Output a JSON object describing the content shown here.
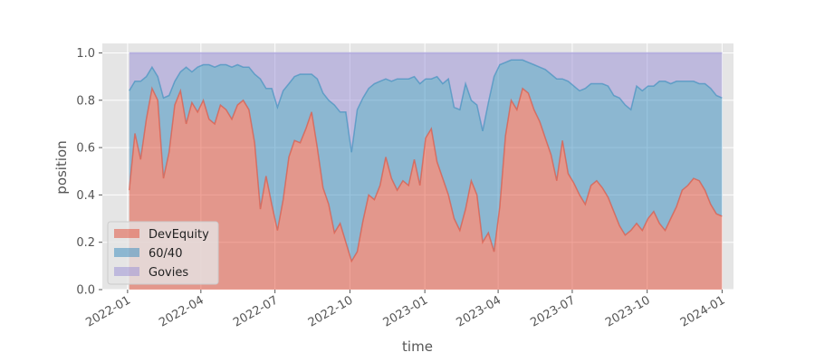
{
  "chart_data": {
    "type": "area",
    "stacked": true,
    "xlabel": "time",
    "ylabel": "position",
    "xlim": [
      "2021-12-01",
      "2024-01-15"
    ],
    "ylim": [
      0,
      1.04
    ],
    "x_ticks": [
      "2022-01",
      "2022-04",
      "2022-07",
      "2022-10",
      "2023-01",
      "2023-04",
      "2023-07",
      "2023-10",
      "2024-01"
    ],
    "y_ticks": [
      "0.0",
      "0.2",
      "0.4",
      "0.6",
      "0.8",
      "1.0"
    ],
    "grid": true,
    "legend_position": "lower-left",
    "background_color": "#e5e5e5",
    "x": [
      "2022-01-03",
      "2022-01-10",
      "2022-01-17",
      "2022-01-24",
      "2022-01-31",
      "2022-02-07",
      "2022-02-14",
      "2022-02-21",
      "2022-02-28",
      "2022-03-07",
      "2022-03-14",
      "2022-03-21",
      "2022-03-28",
      "2022-04-04",
      "2022-04-11",
      "2022-04-18",
      "2022-04-25",
      "2022-05-02",
      "2022-05-09",
      "2022-05-16",
      "2022-05-23",
      "2022-05-30",
      "2022-06-06",
      "2022-06-13",
      "2022-06-20",
      "2022-06-27",
      "2022-07-04",
      "2022-07-11",
      "2022-07-18",
      "2022-07-25",
      "2022-08-01",
      "2022-08-08",
      "2022-08-15",
      "2022-08-22",
      "2022-08-29",
      "2022-09-05",
      "2022-09-12",
      "2022-09-19",
      "2022-09-26",
      "2022-10-03",
      "2022-10-10",
      "2022-10-17",
      "2022-10-24",
      "2022-10-31",
      "2022-11-07",
      "2022-11-14",
      "2022-11-21",
      "2022-11-28",
      "2022-12-05",
      "2022-12-12",
      "2022-12-19",
      "2022-12-26",
      "2023-01-02",
      "2023-01-09",
      "2023-01-16",
      "2023-01-23",
      "2023-01-30",
      "2023-02-06",
      "2023-02-13",
      "2023-02-20",
      "2023-02-27",
      "2023-03-06",
      "2023-03-13",
      "2023-03-20",
      "2023-03-27",
      "2023-04-03",
      "2023-04-10",
      "2023-04-17",
      "2023-04-24",
      "2023-05-01",
      "2023-05-08",
      "2023-05-15",
      "2023-05-22",
      "2023-05-29",
      "2023-06-05",
      "2023-06-12",
      "2023-06-19",
      "2023-06-26",
      "2023-07-03",
      "2023-07-10",
      "2023-07-17",
      "2023-07-24",
      "2023-07-31",
      "2023-08-07",
      "2023-08-14",
      "2023-08-21",
      "2023-08-28",
      "2023-09-04",
      "2023-09-11",
      "2023-09-18",
      "2023-09-25",
      "2023-10-02",
      "2023-10-09",
      "2023-10-16",
      "2023-10-23",
      "2023-10-30",
      "2023-11-06",
      "2023-11-13",
      "2023-11-20",
      "2023-11-27",
      "2023-12-04",
      "2023-12-11",
      "2023-12-18",
      "2023-12-25",
      "2024-01-01"
    ],
    "series": [
      {
        "name": "DevEquity",
        "color": "#E24A33",
        "values": [
          0.42,
          0.66,
          0.55,
          0.72,
          0.85,
          0.8,
          0.47,
          0.58,
          0.78,
          0.84,
          0.7,
          0.79,
          0.75,
          0.8,
          0.72,
          0.7,
          0.78,
          0.76,
          0.72,
          0.78,
          0.8,
          0.76,
          0.62,
          0.34,
          0.48,
          0.36,
          0.25,
          0.38,
          0.56,
          0.63,
          0.62,
          0.68,
          0.75,
          0.6,
          0.43,
          0.36,
          0.24,
          0.28,
          0.2,
          0.12,
          0.16,
          0.29,
          0.4,
          0.38,
          0.44,
          0.56,
          0.47,
          0.42,
          0.46,
          0.44,
          0.55,
          0.44,
          0.64,
          0.68,
          0.54,
          0.47,
          0.4,
          0.3,
          0.25,
          0.34,
          0.46,
          0.4,
          0.2,
          0.24,
          0.16,
          0.35,
          0.65,
          0.8,
          0.76,
          0.85,
          0.83,
          0.76,
          0.71,
          0.64,
          0.57,
          0.46,
          0.63,
          0.49,
          0.45,
          0.4,
          0.36,
          0.44,
          0.46,
          0.43,
          0.39,
          0.33,
          0.27,
          0.23,
          0.25,
          0.28,
          0.25,
          0.3,
          0.33,
          0.28,
          0.25,
          0.3,
          0.35,
          0.42,
          0.44,
          0.47,
          0.46,
          0.42,
          0.36,
          0.32,
          0.31
        ]
      },
      {
        "name": "60/40",
        "color": "#348ABD",
        "values": [
          0.42,
          0.22,
          0.33,
          0.18,
          0.09,
          0.1,
          0.34,
          0.24,
          0.1,
          0.08,
          0.24,
          0.13,
          0.19,
          0.15,
          0.23,
          0.24,
          0.17,
          0.19,
          0.22,
          0.17,
          0.14,
          0.18,
          0.29,
          0.55,
          0.37,
          0.49,
          0.52,
          0.46,
          0.31,
          0.27,
          0.29,
          0.23,
          0.16,
          0.29,
          0.4,
          0.44,
          0.54,
          0.47,
          0.55,
          0.46,
          0.6,
          0.52,
          0.45,
          0.49,
          0.44,
          0.33,
          0.41,
          0.47,
          0.43,
          0.45,
          0.35,
          0.43,
          0.25,
          0.21,
          0.36,
          0.4,
          0.49,
          0.47,
          0.51,
          0.53,
          0.34,
          0.38,
          0.47,
          0.55,
          0.74,
          0.6,
          0.31,
          0.17,
          0.21,
          0.12,
          0.13,
          0.19,
          0.23,
          0.29,
          0.34,
          0.43,
          0.26,
          0.39,
          0.41,
          0.44,
          0.49,
          0.43,
          0.41,
          0.44,
          0.47,
          0.49,
          0.54,
          0.55,
          0.51,
          0.58,
          0.59,
          0.56,
          0.53,
          0.6,
          0.63,
          0.57,
          0.53,
          0.46,
          0.44,
          0.41,
          0.41,
          0.45,
          0.49,
          0.5,
          0.5
        ]
      },
      {
        "name": "Govies",
        "color": "#988ED5",
        "values": [
          0.16,
          0.12,
          0.12,
          0.1,
          0.06,
          0.1,
          0.19,
          0.18,
          0.12,
          0.08,
          0.06,
          0.08,
          0.06,
          0.05,
          0.05,
          0.06,
          0.05,
          0.05,
          0.06,
          0.05,
          0.06,
          0.06,
          0.09,
          0.11,
          0.15,
          0.15,
          0.23,
          0.16,
          0.13,
          0.1,
          0.09,
          0.09,
          0.09,
          0.11,
          0.17,
          0.2,
          0.22,
          0.25,
          0.25,
          0.42,
          0.24,
          0.19,
          0.15,
          0.13,
          0.12,
          0.11,
          0.12,
          0.11,
          0.11,
          0.11,
          0.1,
          0.13,
          0.11,
          0.11,
          0.1,
          0.13,
          0.11,
          0.23,
          0.24,
          0.13,
          0.2,
          0.22,
          0.33,
          0.21,
          0.1,
          0.05,
          0.04,
          0.03,
          0.03,
          0.03,
          0.04,
          0.05,
          0.06,
          0.07,
          0.09,
          0.11,
          0.11,
          0.12,
          0.14,
          0.16,
          0.15,
          0.13,
          0.13,
          0.13,
          0.14,
          0.18,
          0.19,
          0.22,
          0.24,
          0.14,
          0.16,
          0.14,
          0.14,
          0.12,
          0.12,
          0.13,
          0.12,
          0.12,
          0.12,
          0.12,
          0.13,
          0.13,
          0.15,
          0.18,
          0.19
        ]
      }
    ]
  }
}
